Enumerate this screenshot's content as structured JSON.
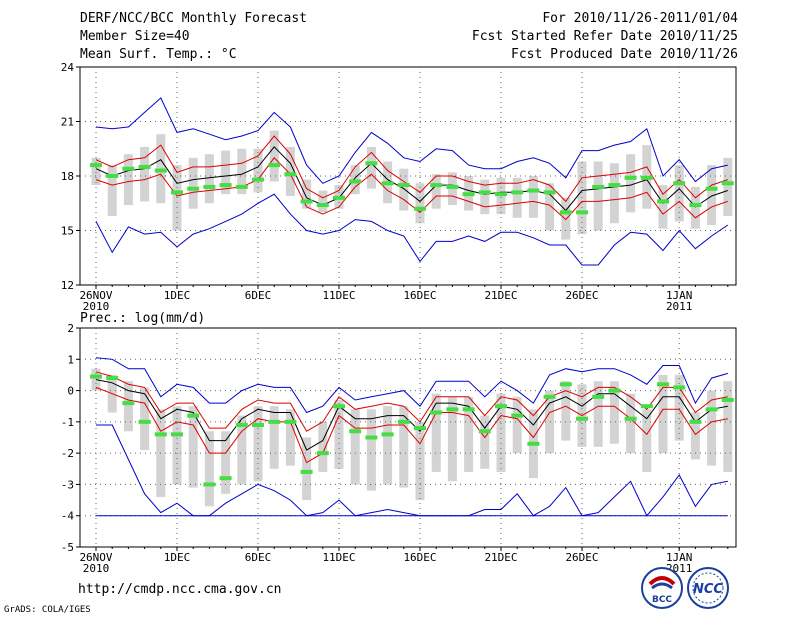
{
  "header": {
    "title": "DERF/NCC/BCC Monthly Forecast",
    "member_size": "Member Size=40",
    "variable": "Mean Surf. Temp.: °C",
    "period": "For 2010/11/26-2011/01/04",
    "started": "Fcst Started Refer Date 2010/11/25",
    "produced": "Fcst Produced Date 2010/11/26"
  },
  "footer": {
    "url": "http://cmdp.ncc.cma.gov.cn",
    "credit": "GrADS: COLA/IGES",
    "logo_bcc": "BCC",
    "logo_ncc": "NCC"
  },
  "colors": {
    "envelope": "#0000cc",
    "spread": "#dd0000",
    "mean": "#000000",
    "box": "#d3d3d3",
    "median": "#44dd44",
    "grid": "#666666"
  },
  "chart_data": [
    {
      "type": "box-plume",
      "title": "Mean Surf. Temp.: °C",
      "ylim": [
        12,
        24
      ],
      "yticks": [
        12,
        15,
        18,
        21,
        24
      ],
      "xtick_labels": [
        "26NOV",
        "1DEC",
        "6DEC",
        "11DEC",
        "16DEC",
        "21DEC",
        "26DEC",
        "1JAN"
      ],
      "year_labels": {
        "26NOV": "2010",
        "1JAN": "2011"
      },
      "days": 40,
      "series": [
        {
          "name": "max",
          "values": [
            20.7,
            20.6,
            20.7,
            21.5,
            22.3,
            20.4,
            20.6,
            20.3,
            20.0,
            20.2,
            20.5,
            21.5,
            20.7,
            18.6,
            17.6,
            18.0,
            19.3,
            20.4,
            19.8,
            19.0,
            18.8,
            19.5,
            19.4,
            18.6,
            18.4,
            18.4,
            18.8,
            19.0,
            18.7,
            17.9,
            19.4,
            19.4,
            19.7,
            19.9,
            20.6,
            18.0,
            18.9,
            17.7,
            18.4,
            18.6
          ]
        },
        {
          "name": "upper",
          "values": [
            18.9,
            18.5,
            18.9,
            19.0,
            19.7,
            18.2,
            18.5,
            18.5,
            18.6,
            18.7,
            19.1,
            20.2,
            19.2,
            17.3,
            16.8,
            17.2,
            18.5,
            19.3,
            18.3,
            17.7,
            17.1,
            18.0,
            18.0,
            17.7,
            17.5,
            17.6,
            17.6,
            17.8,
            17.5,
            16.6,
            17.9,
            18.0,
            18.1,
            18.2,
            18.5,
            17.0,
            17.8,
            16.8,
            17.5,
            17.8
          ]
        },
        {
          "name": "mean",
          "values": [
            18.4,
            18.0,
            18.3,
            18.4,
            18.9,
            17.6,
            17.8,
            17.9,
            18.0,
            18.1,
            18.5,
            19.6,
            18.7,
            16.8,
            16.4,
            16.8,
            17.9,
            18.7,
            17.8,
            17.3,
            16.6,
            17.5,
            17.5,
            17.2,
            17.0,
            17.1,
            17.1,
            17.2,
            17.0,
            16.1,
            17.2,
            17.3,
            17.4,
            17.5,
            17.8,
            16.5,
            17.3,
            16.3,
            16.9,
            17.2
          ]
        },
        {
          "name": "lower",
          "values": [
            17.8,
            17.5,
            17.7,
            17.8,
            18.1,
            16.9,
            17.1,
            17.2,
            17.3,
            17.4,
            17.8,
            19.0,
            18.1,
            16.3,
            15.9,
            16.3,
            17.4,
            18.1,
            17.2,
            16.7,
            16.0,
            16.9,
            16.9,
            16.6,
            16.3,
            16.4,
            16.5,
            16.6,
            16.4,
            15.6,
            16.6,
            16.6,
            16.7,
            16.8,
            17.1,
            15.9,
            16.6,
            15.7,
            16.3,
            16.6
          ]
        },
        {
          "name": "min",
          "values": [
            15.5,
            13.8,
            15.2,
            14.8,
            14.9,
            14.1,
            14.8,
            15.1,
            15.5,
            15.9,
            16.5,
            17.0,
            15.9,
            15.0,
            14.8,
            15.0,
            15.6,
            15.5,
            15.0,
            14.7,
            13.3,
            14.4,
            14.4,
            14.7,
            14.4,
            14.9,
            14.9,
            14.6,
            14.2,
            14.2,
            13.1,
            13.1,
            14.2,
            14.9,
            14.8,
            13.9,
            15.0,
            14.0,
            14.7,
            15.3
          ]
        },
        {
          "name": "box_top",
          "values": [
            19.0,
            18.6,
            19.2,
            19.6,
            20.3,
            18.6,
            19.0,
            19.2,
            19.4,
            19.5,
            19.5,
            20.5,
            19.6,
            17.8,
            17.2,
            17.5,
            18.6,
            19.6,
            18.8,
            18.4,
            17.6,
            18.1,
            18.2,
            18.0,
            17.8,
            17.9,
            17.9,
            18.0,
            17.6,
            16.8,
            18.8,
            18.8,
            18.7,
            19.2,
            19.7,
            17.5,
            18.6,
            17.4,
            18.6,
            19.0
          ]
        },
        {
          "name": "box_bottom",
          "values": [
            17.5,
            15.8,
            16.4,
            16.6,
            16.5,
            15.0,
            16.2,
            16.5,
            17.0,
            17.0,
            17.1,
            17.7,
            16.9,
            16.2,
            16.0,
            16.2,
            17.0,
            17.3,
            16.5,
            16.1,
            15.4,
            16.2,
            16.4,
            16.1,
            15.9,
            15.9,
            15.7,
            15.7,
            15.0,
            14.5,
            14.8,
            15.0,
            15.4,
            16.0,
            16.2,
            15.1,
            15.5,
            15.1,
            15.3,
            15.8
          ]
        },
        {
          "name": "median",
          "values": [
            18.6,
            18.0,
            18.4,
            18.5,
            18.3,
            17.1,
            17.3,
            17.4,
            17.5,
            17.4,
            17.8,
            18.6,
            18.1,
            16.6,
            16.4,
            16.8,
            17.7,
            18.7,
            17.6,
            17.5,
            16.2,
            17.5,
            17.4,
            17.0,
            17.1,
            17.0,
            17.1,
            17.2,
            17.1,
            16.0,
            16.0,
            17.4,
            17.5,
            17.9,
            17.9,
            16.6,
            17.6,
            16.4,
            17.3,
            17.6
          ]
        }
      ]
    },
    {
      "type": "box-plume",
      "title": "Prec.: log(mm/d)",
      "ylim": [
        -5,
        2
      ],
      "yticks": [
        -5,
        -4,
        -3,
        -2,
        -1,
        0,
        1,
        2
      ],
      "xtick_labels": [
        "26NOV",
        "1DEC",
        "6DEC",
        "11DEC",
        "16DEC",
        "21DEC",
        "26DEC",
        "1JAN"
      ],
      "year_labels": {
        "26NOV": "2010",
        "1JAN": "2011"
      },
      "days": 40,
      "series": [
        {
          "name": "max",
          "values": [
            1.05,
            1.0,
            0.7,
            0.7,
            -0.2,
            0.2,
            0.1,
            -0.4,
            -0.4,
            0.0,
            0.2,
            0.1,
            0.1,
            -0.7,
            -0.5,
            0.1,
            -0.3,
            -0.2,
            -0.1,
            0.0,
            -0.5,
            0.3,
            0.3,
            0.3,
            -0.2,
            0.3,
            0.0,
            -0.4,
            0.5,
            0.7,
            0.6,
            0.7,
            0.7,
            0.5,
            0.2,
            0.8,
            0.8,
            -0.4,
            0.4,
            0.55
          ]
        },
        {
          "name": "upper",
          "values": [
            0.6,
            0.45,
            0.2,
            0.1,
            -0.7,
            -0.4,
            -0.4,
            -1.2,
            -1.2,
            -0.6,
            -0.3,
            -0.4,
            -0.4,
            -1.3,
            -1.0,
            -0.2,
            -0.6,
            -0.5,
            -0.4,
            -0.5,
            -1.0,
            -0.2,
            -0.2,
            -0.2,
            -0.8,
            -0.2,
            -0.3,
            -0.8,
            -0.2,
            0.0,
            -0.2,
            0.1,
            0.1,
            -0.2,
            -0.6,
            0.1,
            0.1,
            -0.7,
            -0.3,
            -0.2
          ]
        },
        {
          "name": "mean",
          "values": [
            0.35,
            0.25,
            0.0,
            -0.1,
            -0.9,
            -0.6,
            -0.7,
            -1.6,
            -1.6,
            -0.9,
            -0.6,
            -0.7,
            -0.7,
            -1.9,
            -1.6,
            -0.5,
            -0.9,
            -0.9,
            -0.8,
            -0.8,
            -1.3,
            -0.4,
            -0.4,
            -0.5,
            -1.2,
            -0.5,
            -0.6,
            -1.1,
            -0.4,
            -0.2,
            -0.5,
            -0.1,
            -0.1,
            -0.5,
            -0.9,
            -0.2,
            -0.2,
            -1.0,
            -0.6,
            -0.5
          ]
        },
        {
          "name": "lower",
          "values": [
            0.1,
            -0.1,
            -0.3,
            -0.4,
            -1.3,
            -1.0,
            -1.1,
            -2.0,
            -2.0,
            -1.3,
            -0.9,
            -1.0,
            -1.0,
            -2.3,
            -2.0,
            -0.8,
            -1.2,
            -1.2,
            -1.1,
            -1.1,
            -1.7,
            -0.7,
            -0.7,
            -0.8,
            -1.5,
            -0.8,
            -0.9,
            -1.5,
            -0.7,
            -0.5,
            -0.8,
            -0.5,
            -0.5,
            -0.9,
            -1.4,
            -0.6,
            -0.6,
            -1.4,
            -1.0,
            -0.9
          ]
        },
        {
          "name": "min",
          "values": [
            -1.1,
            -1.1,
            -2.2,
            -3.3,
            -3.9,
            -3.6,
            -4.0,
            -4.0,
            -3.6,
            -3.3,
            -3.0,
            -3.2,
            -3.5,
            -4.0,
            -3.9,
            -3.5,
            -4.0,
            -3.9,
            -3.8,
            -3.9,
            -4.0,
            -4.0,
            -4.0,
            -4.0,
            -3.8,
            -3.8,
            -3.3,
            -4.0,
            -3.7,
            -3.1,
            -4.0,
            -3.9,
            -3.4,
            -2.9,
            -4.0,
            -3.4,
            -2.7,
            -3.7,
            -3.0,
            -2.9
          ]
        },
        {
          "name": "box_top",
          "values": [
            0.7,
            0.5,
            0.3,
            0.1,
            -0.6,
            -0.5,
            -0.5,
            -1.3,
            -1.3,
            -0.8,
            -0.5,
            -0.5,
            -0.6,
            -1.5,
            -1.0,
            -0.3,
            -0.6,
            -0.6,
            -0.5,
            -0.5,
            -1.0,
            -0.1,
            -0.2,
            -0.2,
            -0.8,
            -0.1,
            -0.2,
            -0.6,
            0.0,
            0.3,
            0.2,
            0.3,
            0.3,
            -0.1,
            -0.6,
            0.5,
            0.5,
            -0.7,
            0.0,
            0.3
          ]
        },
        {
          "name": "box_bottom",
          "values": [
            0.0,
            -0.7,
            -1.3,
            -1.9,
            -3.4,
            -3.0,
            -3.1,
            -3.7,
            -3.3,
            -3.0,
            -2.9,
            -2.5,
            -2.4,
            -3.5,
            -2.6,
            -2.5,
            -3.0,
            -3.2,
            -3.0,
            -3.1,
            -3.5,
            -2.6,
            -2.9,
            -2.6,
            -2.5,
            -2.6,
            -2.0,
            -2.8,
            -2.0,
            -1.6,
            -1.8,
            -1.8,
            -1.7,
            -2.0,
            -2.6,
            -2.0,
            -1.6,
            -2.2,
            -2.4,
            -2.6
          ]
        },
        {
          "name": "median",
          "values": [
            0.45,
            0.4,
            -0.4,
            -1.0,
            -1.4,
            -1.4,
            -0.8,
            -3.0,
            -2.8,
            -1.1,
            -1.1,
            -1.0,
            -1.0,
            -2.6,
            -2.0,
            -0.5,
            -1.3,
            -1.5,
            -1.4,
            -1.0,
            -1.2,
            -0.7,
            -0.6,
            -0.6,
            -1.3,
            -0.5,
            -0.8,
            -1.7,
            -0.2,
            0.2,
            -0.9,
            -0.2,
            0.0,
            -0.9,
            -0.5,
            0.2,
            0.1,
            -1.0,
            -0.6,
            -0.3
          ]
        }
      ]
    }
  ]
}
